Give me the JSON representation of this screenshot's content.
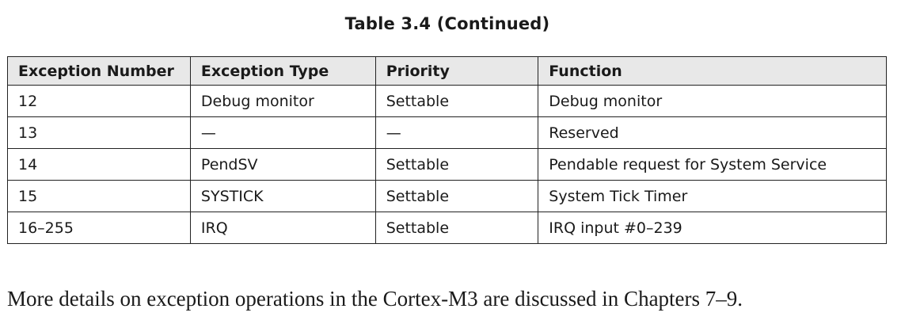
{
  "table": {
    "caption": "Table 3.4  (Continued)",
    "headers": [
      "Exception Number",
      "Exception Type",
      "Priority",
      "Function"
    ],
    "rows": [
      [
        "12",
        "Debug monitor",
        "Settable",
        "Debug monitor"
      ],
      [
        "13",
        "—",
        "—",
        "Reserved"
      ],
      [
        "14",
        "PendSV",
        "Settable",
        "Pendable request for System Service"
      ],
      [
        "15",
        "SYSTICK",
        "Settable",
        "System Tick Timer"
      ],
      [
        "16–255",
        "IRQ",
        "Settable",
        "IRQ input #0–239"
      ]
    ]
  },
  "paragraph": "More details on exception operations in the Cortex-M3 are discussed in Chapters 7–9."
}
